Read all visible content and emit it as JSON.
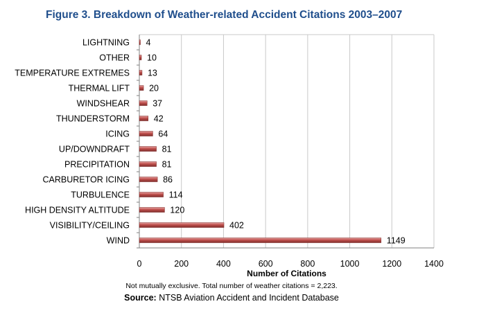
{
  "figure": {
    "title": "Figure 3.  Breakdown of Weather-related Accident Citations 2003–2007",
    "note": "Not mutually exclusive.  Total number of weather citations = 2,223.",
    "source_label": "Source:",
    "source_text": "NTSB Aviation Accident and Incident Database"
  },
  "colors": {
    "bar": "#c0504d",
    "bar_light": "#e5a4a2",
    "bar_dark": "#7f2d2b",
    "grid": "#c8c8c8",
    "title": "#1f4e8c"
  },
  "chart_data": {
    "type": "bar",
    "orientation": "horizontal",
    "categories": [
      "LIGHTNING",
      "OTHER",
      "TEMPERATURE EXTREMES",
      "THERMAL LIFT",
      "WINDSHEAR",
      "THUNDERSTORM",
      "ICING",
      "UP/DOWNDRAFT",
      "PRECIPITATION",
      "CARBURETOR ICING",
      "TURBULENCE",
      "HIGH DENSITY ALTITUDE",
      "VISIBILITY/CEILING",
      "WIND"
    ],
    "values": [
      4,
      10,
      13,
      20,
      37,
      42,
      64,
      81,
      81,
      86,
      114,
      120,
      402,
      1149
    ],
    "xlabel": "Number of Citations",
    "ylabel": "",
    "xlim": [
      0,
      1400
    ],
    "xticks": [
      0,
      200,
      400,
      600,
      800,
      1000,
      1200,
      1400
    ],
    "grid": true
  }
}
